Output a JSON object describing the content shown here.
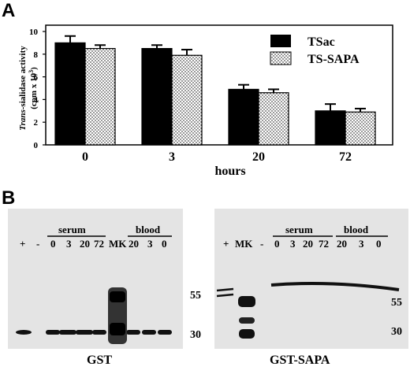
{
  "panel_a": {
    "letter": "A",
    "chart_data": {
      "type": "bar",
      "categories": [
        "0",
        "3",
        "20",
        "72"
      ],
      "xlabel": "hours",
      "ylabel": "Trans-sialidase activity (cpm x 10³)",
      "ylabel_italic_part": "Trans",
      "ylabel_rest": "-sialidase activity",
      "ylabel_line2": "(cpm x 10",
      "ylabel_sup": "3",
      "ylabel_close": ")",
      "ylim": [
        0,
        10
      ],
      "yticks": [
        "0",
        "2",
        "4",
        "6",
        "8",
        "10"
      ],
      "grid": false,
      "legend_position": "top-right",
      "series": [
        {
          "name": "TSac",
          "values": [
            9.0,
            8.5,
            4.9,
            3.0
          ],
          "errors": [
            0.6,
            0.3,
            0.4,
            0.6
          ],
          "fill": "solid-black"
        },
        {
          "name": "TS-SAPA",
          "values": [
            8.5,
            7.9,
            4.6,
            2.9
          ],
          "errors": [
            0.3,
            0.5,
            0.3,
            0.3
          ],
          "fill": "dotted"
        }
      ]
    }
  },
  "panel_b": {
    "letter": "B",
    "left_blot": {
      "caption": "GST",
      "lane_labels": [
        "+",
        "-",
        "0",
        "3",
        "20",
        "72",
        "MK",
        "20",
        "3",
        "0"
      ],
      "group_labels": {
        "serum": "serum",
        "blood": "blood"
      },
      "markers": [
        "55",
        "30"
      ]
    },
    "right_blot": {
      "caption": "GST-SAPA",
      "lane_labels": [
        "+",
        "MK",
        "-",
        "0",
        "3",
        "20",
        "72",
        "20",
        "3",
        "0"
      ],
      "group_labels": {
        "serum": "serum",
        "blood": "blood"
      },
      "markers": [
        "55",
        "30"
      ]
    }
  }
}
